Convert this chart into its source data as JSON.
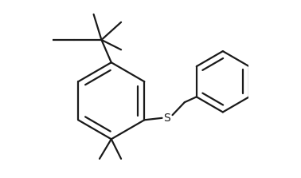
{
  "background_color": "#ffffff",
  "line_color": "#1a1a1a",
  "line_width": 1.6,
  "dbo": 0.032,
  "figsize": [
    3.78,
    2.23
  ],
  "dpi": 100,
  "xlim": [
    0.0,
    1.0
  ],
  "ylim": [
    0.05,
    0.95
  ]
}
